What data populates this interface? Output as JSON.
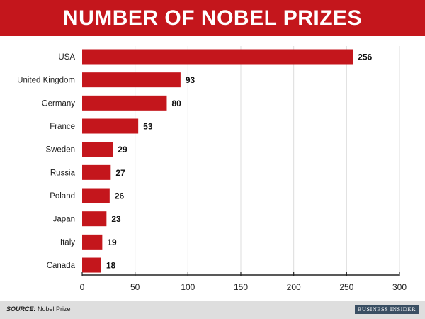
{
  "header": {
    "title": "NUMBER OF NOBEL PRIZES"
  },
  "chart_data": {
    "type": "bar",
    "orientation": "horizontal",
    "title": "NUMBER OF NOBEL PRIZES",
    "xlabel": "",
    "ylabel": "",
    "categories": [
      "USA",
      "United Kingdom",
      "Germany",
      "France",
      "Sweden",
      "Russia",
      "Poland",
      "Japan",
      "Italy",
      "Canada"
    ],
    "values": [
      256,
      93,
      80,
      53,
      29,
      27,
      26,
      23,
      19,
      18
    ],
    "xlim": [
      0,
      300
    ],
    "xticks": [
      0,
      50,
      100,
      150,
      200,
      250,
      300
    ],
    "grid": "vertical",
    "bar_color": "#c4161c",
    "grid_color": "#dcdcdc",
    "axis_color": "#222222"
  },
  "footer": {
    "source_label": "SOURCE:",
    "source_text": "Nobel Prize",
    "logo_text": "BUSINESS INSIDER"
  }
}
